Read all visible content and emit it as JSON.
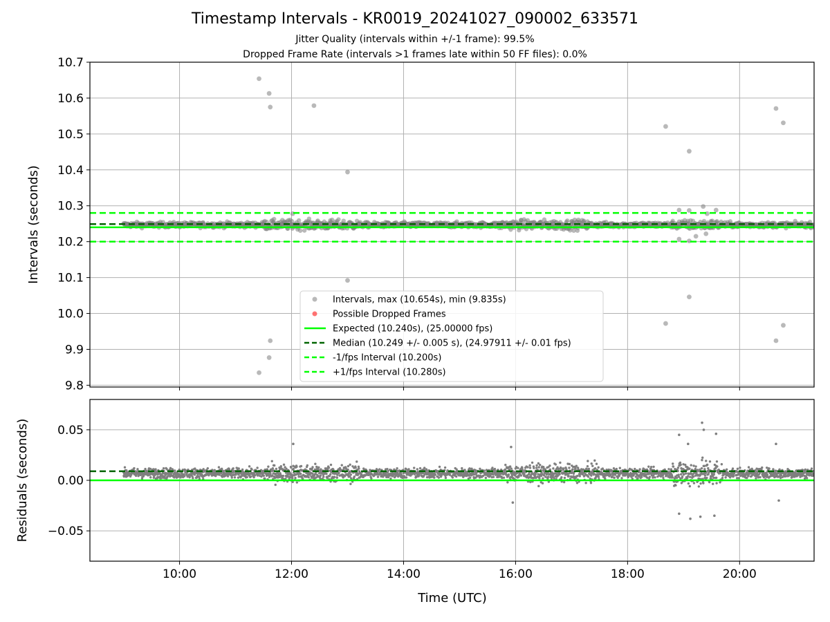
{
  "chart_data": [
    {
      "type": "scatter",
      "title": "Timestamp Intervals - KR0019_20241027_090002_633571",
      "subtitle_lines": [
        "Jitter Quality (intervals within +/-1 frame): 99.5%",
        "Dropped Frame Rate (intervals >1 frames late within 50 FF files): 0.0%"
      ],
      "xlabel": "",
      "ylabel": "Intervals (seconds)",
      "x_units": "hours UTC",
      "xlim": [
        8.4,
        21.33
      ],
      "ylim": [
        9.795,
        10.7
      ],
      "yticks": [
        9.8,
        9.9,
        10.0,
        10.1,
        10.2,
        10.3,
        10.4,
        10.5,
        10.6,
        10.7
      ],
      "ytick_labels": [
        "9.8",
        "9.9",
        "10.0",
        "10.1",
        "10.2",
        "10.3",
        "10.4",
        "10.5",
        "10.6",
        "10.7"
      ],
      "xticks": [
        10,
        12,
        14,
        16,
        18,
        20
      ],
      "grid": true,
      "data_x_range": [
        9.0,
        21.33
      ],
      "bulk_band": {
        "median": 10.249,
        "spread": 0.006
      },
      "lines": {
        "expected": 10.24,
        "median": 10.249,
        "minus_1fps": 10.2,
        "plus_1fps": 10.28
      },
      "outliers": [
        [
          11.42,
          10.654
        ],
        [
          11.6,
          10.613
        ],
        [
          11.62,
          10.575
        ],
        [
          12.4,
          10.579
        ],
        [
          13.0,
          10.394
        ],
        [
          13.0,
          10.092
        ],
        [
          11.62,
          9.924
        ],
        [
          11.6,
          9.877
        ],
        [
          11.42,
          9.835
        ],
        [
          18.68,
          10.521
        ],
        [
          19.1,
          10.452
        ],
        [
          19.1,
          10.046
        ],
        [
          18.68,
          9.972
        ],
        [
          20.65,
          10.571
        ],
        [
          20.78,
          10.531
        ],
        [
          20.78,
          9.967
        ],
        [
          20.65,
          9.924
        ],
        [
          18.92,
          10.288
        ],
        [
          19.1,
          10.287
        ],
        [
          19.35,
          10.298
        ],
        [
          19.58,
          10.288
        ],
        [
          19.42,
          10.278
        ],
        [
          12.02,
          10.278
        ],
        [
          19.1,
          10.202
        ],
        [
          18.92,
          10.207
        ],
        [
          19.22,
          10.215
        ],
        [
          19.4,
          10.222
        ]
      ],
      "legend": {
        "placement": "lower-center",
        "entries": [
          {
            "label": "Intervals, max (10.654s), min (9.835s)",
            "kind": "marker",
            "color": "#7f7f7f"
          },
          {
            "label": "Possible Dropped Frames",
            "kind": "marker",
            "color": "#ff0000"
          },
          {
            "label": "Expected (10.240s), (25.00000 fps)",
            "kind": "solid",
            "color": "#00ff00"
          },
          {
            "label": "Median (10.249 +/- 0.005 s), (24.97911 +/- 0.01 fps)",
            "kind": "dashed",
            "color": "#006400"
          },
          {
            "label": "-1/fps Interval (10.200s)",
            "kind": "dashed",
            "color": "#00ff00"
          },
          {
            "label": "+1/fps Interval (10.280s)",
            "kind": "dashed",
            "color": "#00ff00"
          }
        ]
      }
    },
    {
      "type": "scatter",
      "xlabel": "Time (UTC)",
      "ylabel": "Residuals (seconds)",
      "x_units": "hours UTC",
      "xlim": [
        8.4,
        21.33
      ],
      "ylim": [
        -0.08,
        0.08
      ],
      "yticks": [
        -0.05,
        0.0,
        0.05
      ],
      "ytick_labels": [
        "−0.05",
        "0.00",
        "0.05"
      ],
      "xticks": [
        10,
        12,
        14,
        16,
        18,
        20
      ],
      "xtick_labels": [
        "10:00",
        "12:00",
        "14:00",
        "16:00",
        "18:00",
        "20:00"
      ],
      "grid": true,
      "data_x_range": [
        9.0,
        21.33
      ],
      "lines": {
        "zero": 0.0,
        "median_offset": 0.009
      },
      "outliers": [
        [
          12.03,
          0.036
        ],
        [
          15.92,
          0.033
        ],
        [
          19.33,
          0.057
        ],
        [
          19.36,
          0.05
        ],
        [
          19.58,
          0.046
        ],
        [
          18.92,
          0.045
        ],
        [
          19.08,
          0.036
        ],
        [
          18.92,
          -0.033
        ],
        [
          19.12,
          -0.038
        ],
        [
          19.3,
          -0.036
        ],
        [
          19.55,
          -0.035
        ],
        [
          15.95,
          -0.022
        ],
        [
          20.65,
          0.036
        ],
        [
          20.7,
          -0.02
        ]
      ]
    }
  ],
  "colors": {
    "points": "#7f7f7f",
    "expected": "#00ff00",
    "median": "#006400",
    "grid": "#b0b0b0"
  }
}
